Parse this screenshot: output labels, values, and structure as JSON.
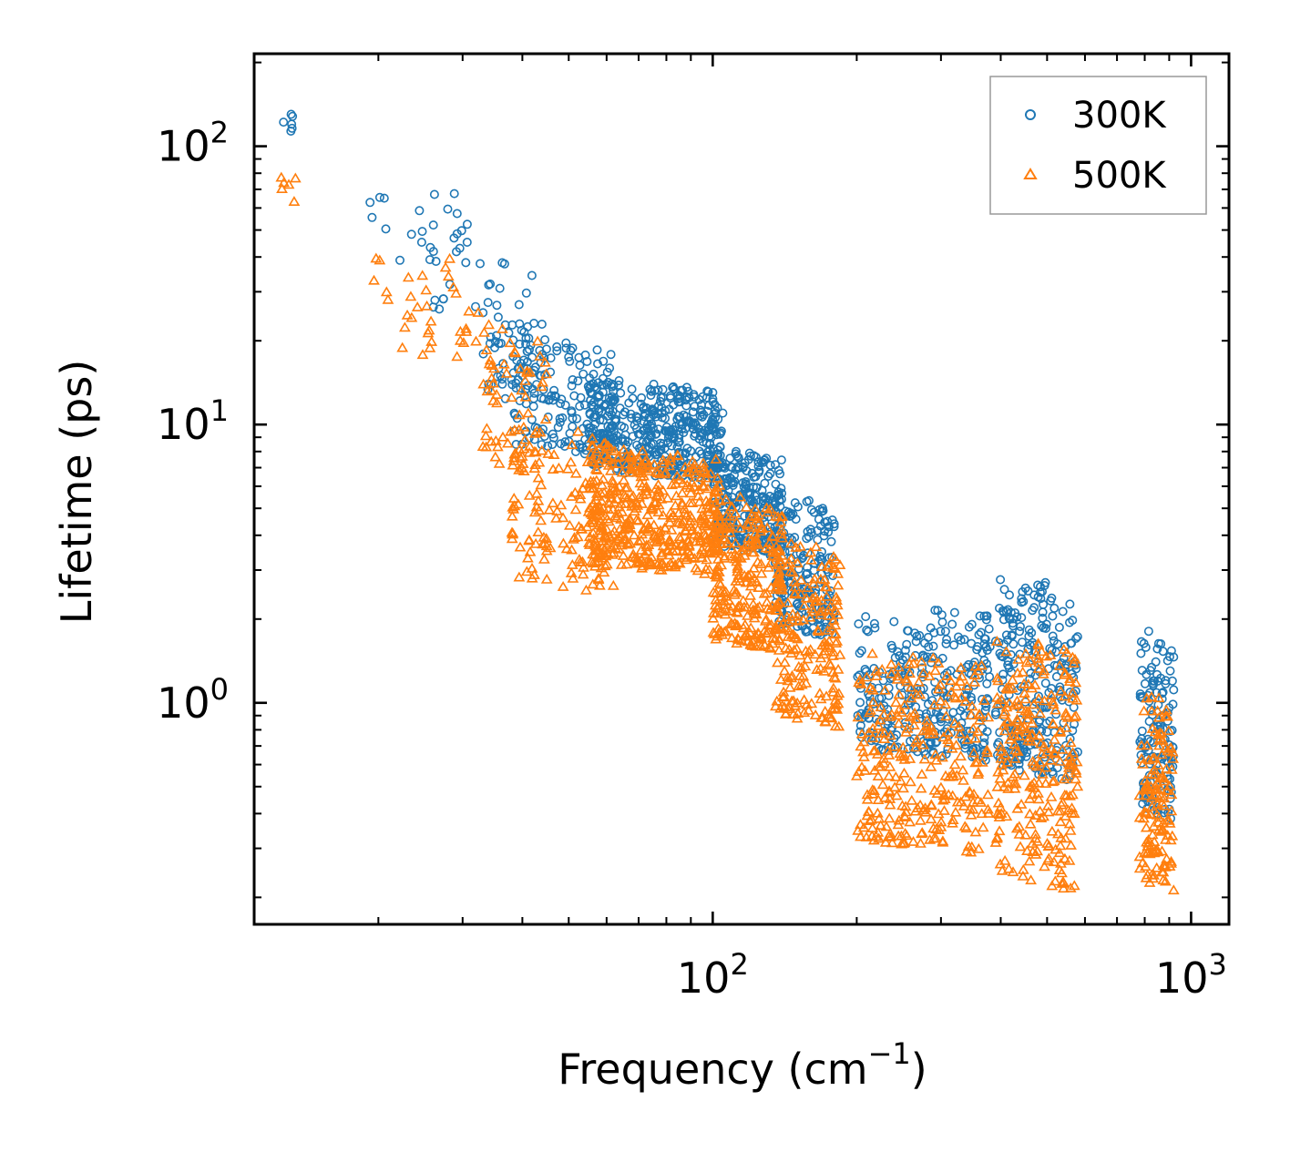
{
  "chart_data": {
    "type": "scatter",
    "title": "",
    "xscale": "log",
    "yscale": "log",
    "xlabel": "Frequency (cm",
    "xlabel_sup": "−1",
    "xlabel_close": ")",
    "ylabel": "Lifetime (ps)",
    "xlim": [
      11,
      1200
    ],
    "ylim": [
      0.16,
      215
    ],
    "x_ticks": [
      {
        "value": 100,
        "base": "10",
        "exp": "2"
      },
      {
        "value": 1000,
        "base": "10",
        "exp": "3"
      }
    ],
    "y_ticks": [
      {
        "value": 1,
        "base": "10",
        "exp": "0"
      },
      {
        "value": 10,
        "base": "10",
        "exp": "1"
      },
      {
        "value": 100,
        "base": "10",
        "exp": "2"
      }
    ],
    "legend_position": "top-right",
    "series": [
      {
        "name": "300K",
        "marker": "circle",
        "color": "#1f77b4",
        "clusters": [
          {
            "x": [
              12.5,
              13.5
            ],
            "y": [
              115,
              145
            ],
            "n": 6
          },
          {
            "x": [
              19,
              21
            ],
            "y": [
              50,
              75
            ],
            "n": 5
          },
          {
            "x": [
              22,
              33
            ],
            "y": [
              25,
              70
            ],
            "n": 30
          },
          {
            "x": [
              33,
              45
            ],
            "y": [
              12,
              38
            ],
            "n": 60
          },
          {
            "x": [
              38,
              62
            ],
            "y": [
              8,
              20
            ],
            "n": 150
          },
          {
            "x": [
              55,
              105
            ],
            "y": [
              6.5,
              14
            ],
            "n": 450
          },
          {
            "x": [
              100,
              140
            ],
            "y": [
              3.5,
              8
            ],
            "n": 260
          },
          {
            "x": [
              135,
              180
            ],
            "y": [
              1.8,
              5.5
            ],
            "n": 200
          },
          {
            "x": [
              200,
              380
            ],
            "y": [
              0.65,
              2.2
            ],
            "n": 300
          },
          {
            "x": [
              390,
              580
            ],
            "y": [
              0.55,
              2.8
            ],
            "n": 260
          },
          {
            "x": [
              780,
              920
            ],
            "y": [
              0.4,
              1.8
            ],
            "n": 140
          }
        ]
      },
      {
        "name": "500K",
        "marker": "triangle",
        "color": "#ff7f0e",
        "clusters": [
          {
            "x": [
              12.5,
              13.5
            ],
            "y": [
              65,
              82
            ],
            "n": 6
          },
          {
            "x": [
              19,
              21
            ],
            "y": [
              29,
              43
            ],
            "n": 5
          },
          {
            "x": [
              22,
              33
            ],
            "y": [
              16,
              40
            ],
            "n": 30
          },
          {
            "x": [
              33,
              45
            ],
            "y": [
              7,
              22
            ],
            "n": 60
          },
          {
            "x": [
              38,
              62
            ],
            "y": [
              2.6,
              10
            ],
            "n": 150
          },
          {
            "x": [
              55,
              105
            ],
            "y": [
              3,
              8
            ],
            "n": 450
          },
          {
            "x": [
              100,
              140
            ],
            "y": [
              1.6,
              5.5
            ],
            "n": 260
          },
          {
            "x": [
              135,
              185
            ],
            "y": [
              0.85,
              3.8
            ],
            "n": 200
          },
          {
            "x": [
              200,
              380
            ],
            "y": [
              0.3,
              1.5
            ],
            "n": 300
          },
          {
            "x": [
              390,
              580
            ],
            "y": [
              0.22,
              1.7
            ],
            "n": 260
          },
          {
            "x": [
              780,
              920
            ],
            "y": [
              0.22,
              1.1
            ],
            "n": 140
          }
        ]
      }
    ]
  }
}
